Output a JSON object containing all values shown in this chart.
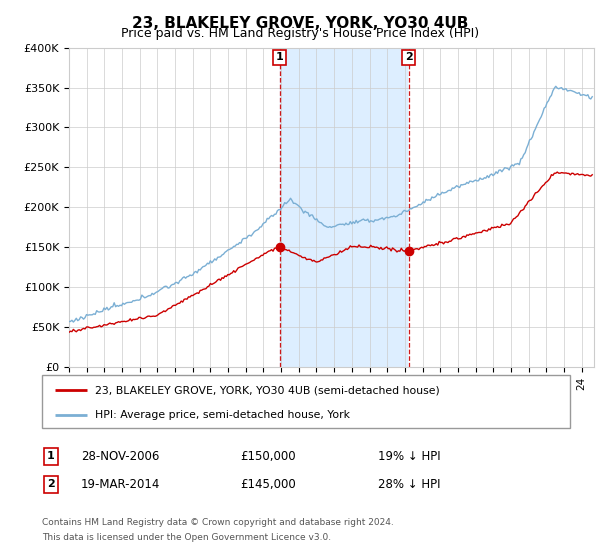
{
  "title": "23, BLAKELEY GROVE, YORK, YO30 4UB",
  "subtitle": "Price paid vs. HM Land Registry's House Price Index (HPI)",
  "ylim": [
    0,
    400000
  ],
  "yticks": [
    0,
    50000,
    100000,
    150000,
    200000,
    250000,
    300000,
    350000,
    400000
  ],
  "ytick_labels": [
    "£0",
    "£50K",
    "£100K",
    "£150K",
    "£200K",
    "£250K",
    "£300K",
    "£350K",
    "£400K"
  ],
  "xlim_start": 1995,
  "xlim_end": 2024.7,
  "sale1_date": 2006.91,
  "sale1_price": 150000,
  "sale1_label": "1",
  "sale2_date": 2014.21,
  "sale2_price": 145000,
  "sale2_label": "2",
  "line_property_color": "#cc0000",
  "line_hpi_color": "#7bafd4",
  "shade_color": "#ddeeff",
  "legend_property": "23, BLAKELEY GROVE, YORK, YO30 4UB (semi-detached house)",
  "legend_hpi": "HPI: Average price, semi-detached house, York",
  "sale1_row": "28-NOV-2006",
  "sale1_price_str": "£150,000",
  "sale1_pct": "19% ↓ HPI",
  "sale2_row": "19-MAR-2014",
  "sale2_price_str": "£145,000",
  "sale2_pct": "28% ↓ HPI",
  "footnote1": "Contains HM Land Registry data © Crown copyright and database right 2024.",
  "footnote2": "This data is licensed under the Open Government Licence v3.0.",
  "grid_color": "#cccccc",
  "title_fontsize": 11,
  "subtitle_fontsize": 9
}
